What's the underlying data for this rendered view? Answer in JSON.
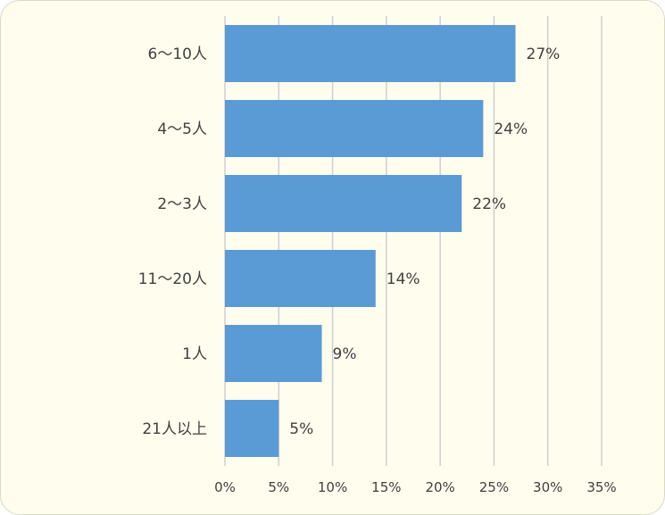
{
  "chart_data": {
    "type": "bar",
    "orientation": "horizontal",
    "categories": [
      "6〜10人",
      "4〜5人",
      "2〜3人",
      "11〜20人",
      "1人",
      "21人以上"
    ],
    "values": [
      27,
      24,
      22,
      14,
      9,
      5
    ],
    "value_labels": [
      "27%",
      "24%",
      "22%",
      "14%",
      "9%",
      "5%"
    ],
    "x_ticks": [
      "0%",
      "5%",
      "10%",
      "15%",
      "20%",
      "25%",
      "30%",
      "35%"
    ],
    "xlim": [
      0,
      35
    ],
    "grid": "vertical",
    "legend": "none",
    "bar_color": "#5b9bd5",
    "background_color": "#fffdee"
  }
}
